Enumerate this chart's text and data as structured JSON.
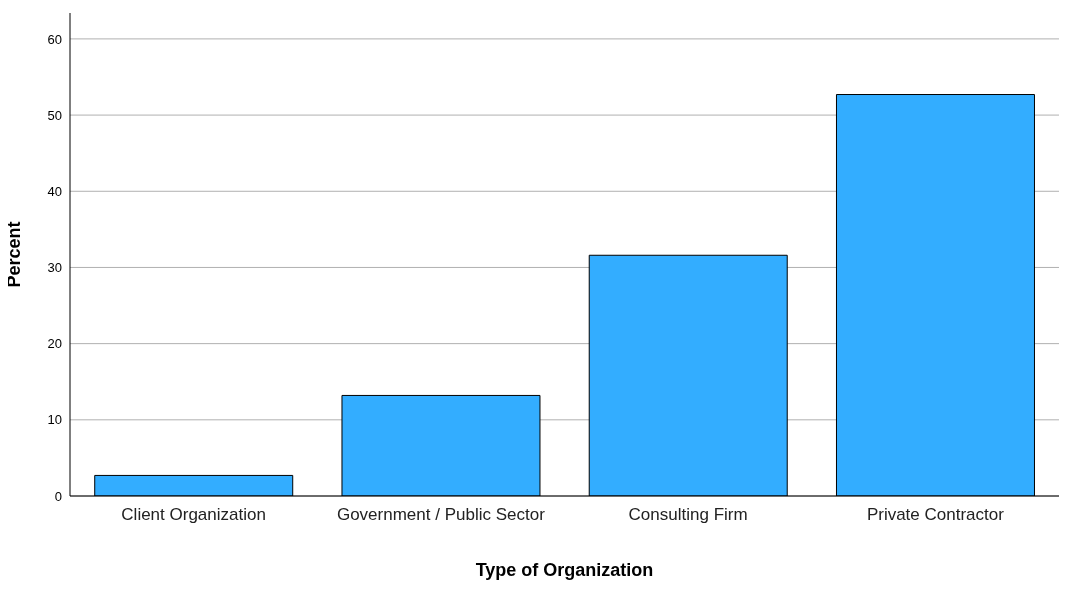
{
  "chart_data": {
    "type": "bar",
    "xlabel": "Type of Organization",
    "ylabel": "Percent",
    "categories": [
      "Client Organization",
      "Government / Public Sector",
      "Consulting Firm",
      "Private Contractor"
    ],
    "values": [
      2.7,
      13.2,
      31.6,
      52.7
    ],
    "color": "#33adff",
    "ylim": [
      0,
      63.4
    ],
    "yticks": [
      0,
      10,
      20,
      30,
      40,
      50,
      60
    ],
    "grid": "y"
  }
}
